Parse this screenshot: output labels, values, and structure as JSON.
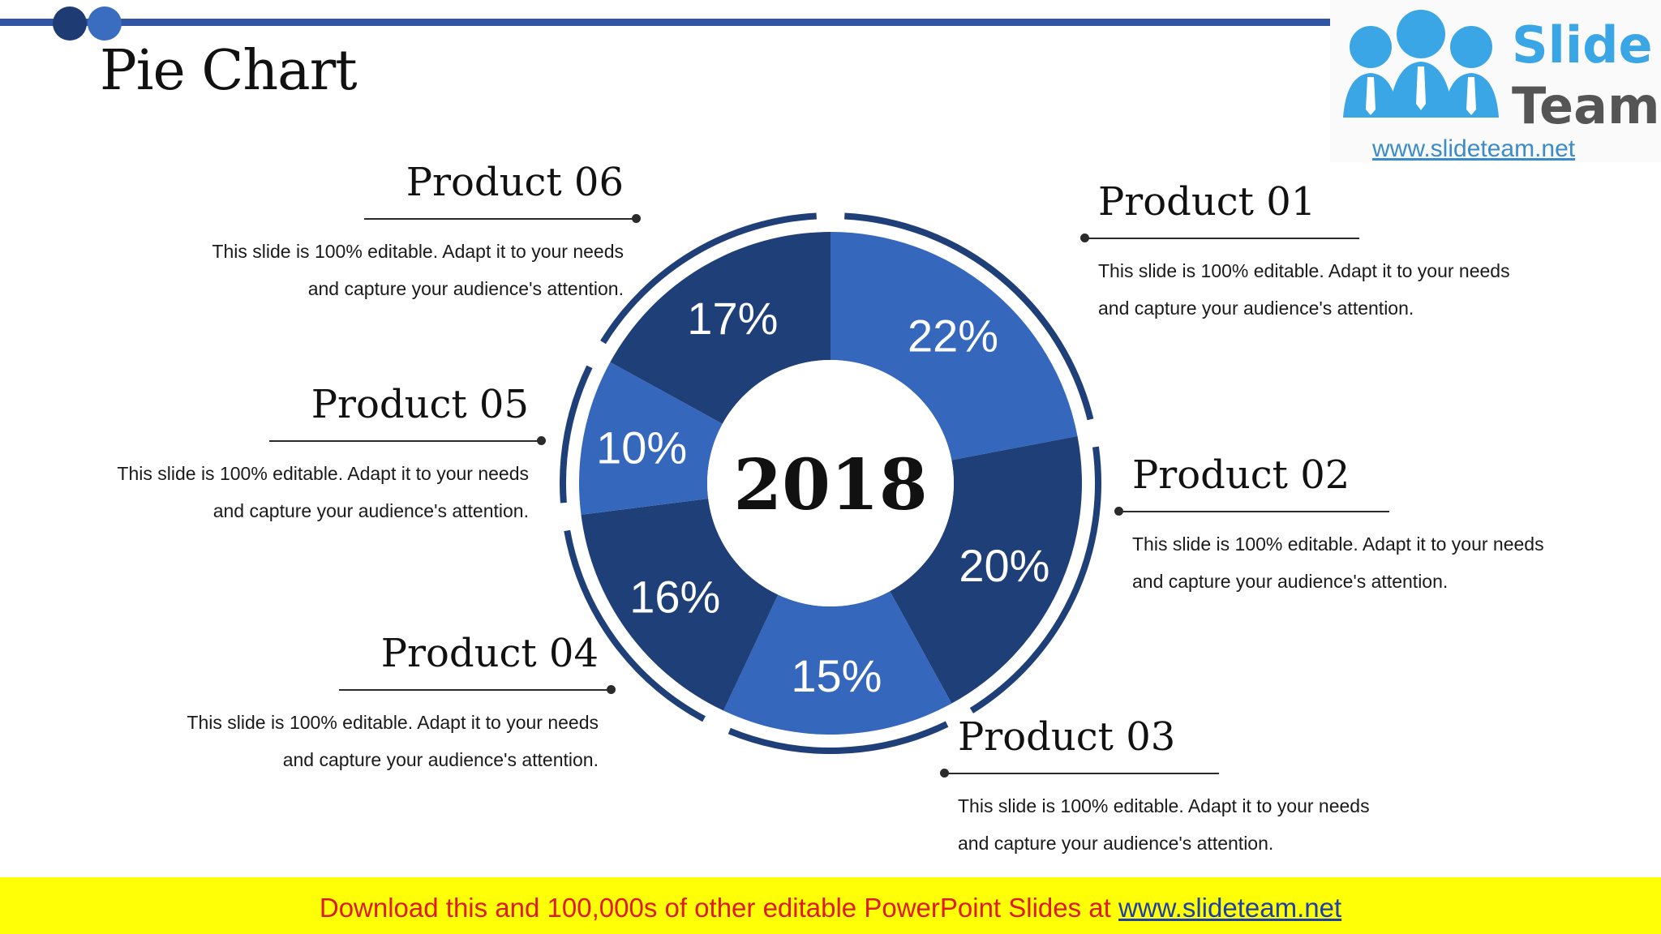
{
  "slide": {
    "title": "Pie Chart",
    "center_label": "2018"
  },
  "logo": {
    "word1": "Slide",
    "word2": "Team",
    "url": "www.slideteam.net"
  },
  "labels": [
    {
      "name": "Product 01",
      "line1": "This slide is 100% editable. Adapt it to your needs",
      "line2": "and capture your audience's attention."
    },
    {
      "name": "Product 02",
      "line1": "This slide is 100% editable. Adapt it to your needs",
      "line2": "and capture your audience's attention."
    },
    {
      "name": "Product 03",
      "line1": "This slide is 100% editable. Adapt it to your needs",
      "line2": "and capture your audience's attention."
    },
    {
      "name": "Product 04",
      "line1": "This slide is 100% editable. Adapt it to your needs",
      "line2": "and capture your audience's attention."
    },
    {
      "name": "Product 05",
      "line1": "This slide is 100% editable. Adapt it to your needs",
      "line2": "and capture your audience's attention."
    },
    {
      "name": "Product 06",
      "line1": "This slide is 100% editable. Adapt it to your needs",
      "line2": "and capture your audience's attention."
    }
  ],
  "chart_data": {
    "type": "pie",
    "categories": [
      "Product 01",
      "Product 02",
      "Product 03",
      "Product 04",
      "Product 05",
      "Product 06"
    ],
    "values": [
      22,
      20,
      15,
      16,
      10,
      17
    ],
    "value_labels": [
      "22%",
      "20%",
      "15%",
      "16%",
      "10%",
      "17%"
    ],
    "colors": [
      "#3567bd",
      "#1f3f78",
      "#3567bd",
      "#1f3f78",
      "#3567bd",
      "#1f3f78"
    ],
    "center_label": "2018",
    "style": "donut",
    "legend": "none"
  },
  "footer": {
    "text": "Download this and 100,000s of other editable PowerPoint Slides at ",
    "link": "www.slideteam.net"
  },
  "colors": {
    "accent": "#2f55a4",
    "dark": "#1f3f78",
    "footer_bg": "#ffff05",
    "footer_text": "#e01b1b"
  }
}
